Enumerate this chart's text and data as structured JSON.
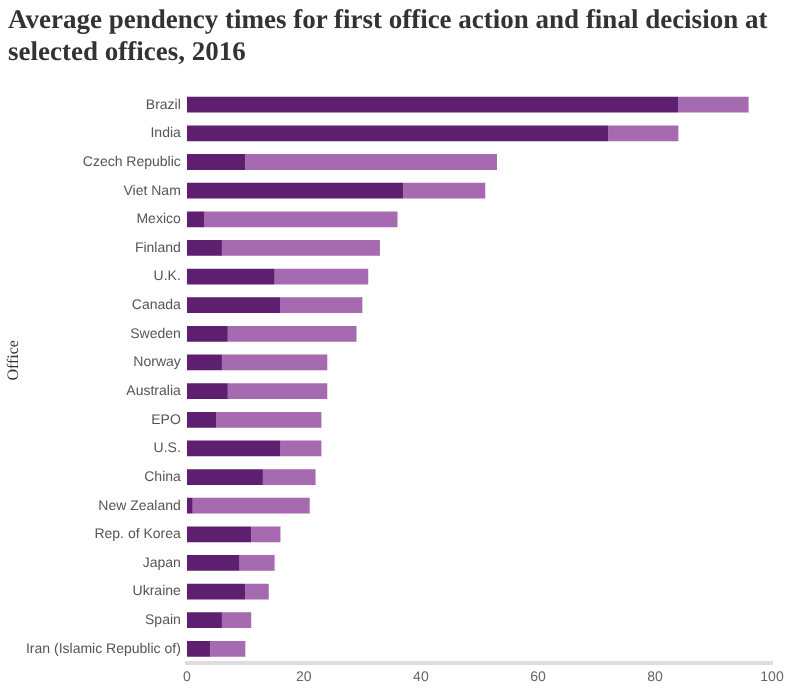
{
  "chart_data": {
    "type": "bar",
    "orientation": "horizontal",
    "title": "Average pendency times for first office action and final decision at selected offices, 2016",
    "ylabel": "Office",
    "categories": [
      "Brazil",
      "India",
      "Czech Republic",
      "Viet Nam",
      "Mexico",
      "Finland",
      "U.K.",
      "Canada",
      "Sweden",
      "Norway",
      "Australia",
      "EPO",
      "U.S.",
      "China",
      "New Zealand",
      "Rep. of Korea",
      "Japan",
      "Ukraine",
      "Spain",
      "Iran (Islamic Republic of)"
    ],
    "series": [
      {
        "color": "#5f1f70",
        "values": [
          84,
          72,
          10,
          37,
          3,
          6,
          15,
          16,
          7,
          6,
          7,
          5,
          16,
          13,
          1,
          11,
          9,
          10,
          6,
          4
        ]
      },
      {
        "color": "#a56aaf",
        "values": [
          12,
          12,
          43,
          14,
          33,
          27,
          16,
          14,
          22,
          18,
          17,
          18,
          7,
          9,
          20,
          5,
          6,
          4,
          5,
          6
        ]
      }
    ],
    "xlim": [
      0,
      100
    ],
    "xticks": [
      0,
      20,
      40,
      60,
      80,
      100
    ],
    "stacked": true,
    "grid": false,
    "legend": false
  }
}
